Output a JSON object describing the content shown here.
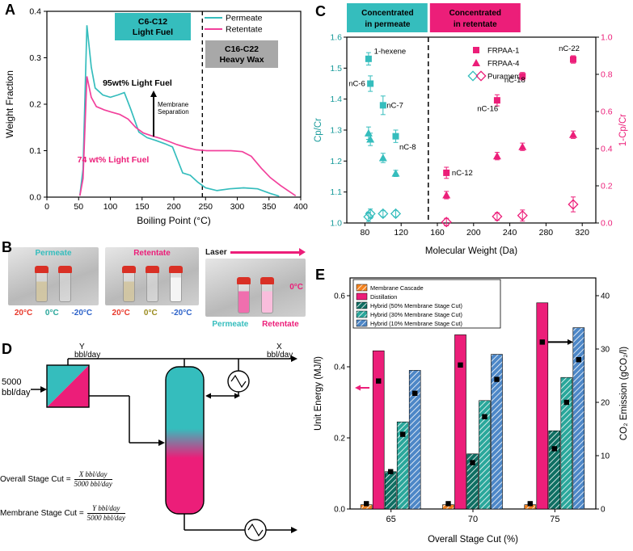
{
  "colors": {
    "teal": "#35BDBD",
    "teal_text": "#189B9B",
    "magenta": "#EC1E79",
    "gray_box": "#A8A8A8",
    "orange": "#F5831F",
    "dark_teal": "#0F6F63",
    "mid_teal": "#2AA79B",
    "blue": "#4D87C7",
    "red": "#E8392B",
    "cold_blue": "#2C62C9"
  },
  "panel_labels": {
    "A": "A",
    "B": "B",
    "C": "C",
    "D": "D",
    "E": "E"
  },
  "chart_data": [
    {
      "id": "A",
      "type": "line",
      "xlabel": "Boiling Point (°C)",
      "ylabel": "Weight Fraction",
      "xlim": [
        0,
        400
      ],
      "ylim": [
        0,
        0.4
      ],
      "xticks": [
        0,
        50,
        100,
        150,
        200,
        250,
        300,
        350,
        400
      ],
      "yticks": [
        "0.0",
        "0.1",
        "0.2",
        "0.3",
        "0.4"
      ],
      "legend": [
        "Permeate",
        "Retentate"
      ],
      "dashed_x": 245,
      "series": [
        {
          "name": "Permeate",
          "color": "#35BDBD",
          "points": [
            [
              52,
              0.004
            ],
            [
              57,
              0.06
            ],
            [
              63,
              0.37
            ],
            [
              70,
              0.28
            ],
            [
              76,
              0.235
            ],
            [
              88,
              0.22
            ],
            [
              100,
              0.215
            ],
            [
              112,
              0.22
            ],
            [
              122,
              0.225
            ],
            [
              132,
              0.19
            ],
            [
              145,
              0.14
            ],
            [
              158,
              0.128
            ],
            [
              172,
              0.122
            ],
            [
              186,
              0.115
            ],
            [
              198,
              0.108
            ],
            [
              206,
              0.08
            ],
            [
              214,
              0.052
            ],
            [
              226,
              0.047
            ],
            [
              238,
              0.032
            ],
            [
              250,
              0.02
            ],
            [
              268,
              0.014
            ],
            [
              288,
              0.018
            ],
            [
              310,
              0.02
            ],
            [
              332,
              0.018
            ],
            [
              352,
              0.008
            ],
            [
              366,
              0.002
            ]
          ]
        },
        {
          "name": "Retentate",
          "color": "#F2419C",
          "points": [
            [
              52,
              0.003
            ],
            [
              57,
              0.04
            ],
            [
              63,
              0.26
            ],
            [
              70,
              0.215
            ],
            [
              78,
              0.195
            ],
            [
              90,
              0.188
            ],
            [
              102,
              0.183
            ],
            [
              115,
              0.178
            ],
            [
              128,
              0.168
            ],
            [
              140,
              0.15
            ],
            [
              152,
              0.138
            ],
            [
              165,
              0.132
            ],
            [
              178,
              0.127
            ],
            [
              192,
              0.12
            ],
            [
              205,
              0.113
            ],
            [
              220,
              0.107
            ],
            [
              235,
              0.102
            ],
            [
              252,
              0.1
            ],
            [
              270,
              0.1
            ],
            [
              290,
              0.1
            ],
            [
              308,
              0.098
            ],
            [
              322,
              0.088
            ],
            [
              338,
              0.062
            ],
            [
              352,
              0.042
            ],
            [
              368,
              0.025
            ],
            [
              382,
              0.012
            ],
            [
              392,
              0.003
            ]
          ]
        }
      ],
      "annotations": {
        "light_fuel_box": [
          "C6-C12",
          "Light Fuel"
        ],
        "heavy_wax_box": [
          "C16-C22",
          "Heavy Wax"
        ],
        "pct95": "95wt% Light Fuel",
        "pct74": "74 wt% Light Fuel",
        "membrane": [
          "Membrane",
          "Separation"
        ]
      }
    },
    {
      "id": "C",
      "type": "scatter",
      "xlabel": "Molecular Weight (Da)",
      "ylabel_left": "Cp/Cr",
      "ylabel_right": "1-Cp/Cr",
      "xlim": [
        60,
        335
      ],
      "xticks": [
        80,
        120,
        160,
        200,
        240,
        280,
        320
      ],
      "ylim_left": [
        1.0,
        1.6
      ],
      "yticks_left": [
        "1.0",
        "1.1",
        "1.2",
        "1.3",
        "1.4",
        "1.5",
        "1.6"
      ],
      "ylim_right": [
        0.0,
        1.0
      ],
      "yticks_right": [
        "0.0",
        "0.2",
        "0.4",
        "0.6",
        "0.8",
        "1.0"
      ],
      "dashed_x": 150,
      "headers": [
        {
          "lines": [
            "Concentrated",
            "in permeate"
          ],
          "bg": "#35BDBD"
        },
        {
          "lines": [
            "Concentrated",
            "in retentate"
          ],
          "bg": "#EC1E79"
        }
      ],
      "legend": [
        {
          "label": "FRPAA-1",
          "marker": "square",
          "colors": [
            "#EC1E79"
          ]
        },
        {
          "label": "FRPAA-4",
          "marker": "triangle",
          "colors": [
            "#EC1E79"
          ]
        },
        {
          "label": "Puramem",
          "marker": "diamond-open",
          "colors": [
            "#35BDBD",
            "#EC1E79"
          ]
        }
      ],
      "series_left": [
        {
          "name": "FRPAA-1",
          "marker": "square",
          "color": "#35BDBD",
          "points": [
            [
              84,
              1.53,
              0.02
            ],
            [
              86,
              1.45,
              0.025
            ],
            [
              100,
              1.38,
              0.03
            ],
            [
              114,
              1.28,
              0.02
            ]
          ]
        },
        {
          "name": "FRPAA-4",
          "marker": "triangle",
          "color": "#35BDBD",
          "points": [
            [
              84,
              1.29,
              0.02
            ],
            [
              86,
              1.27,
              0.02
            ],
            [
              100,
              1.21,
              0.015
            ],
            [
              114,
              1.16,
              0.01
            ]
          ]
        },
        {
          "name": "Puramem",
          "marker": "diamond-open",
          "color": "#35BDBD",
          "points": [
            [
              84,
              1.02,
              0.015
            ],
            [
              86,
              1.03,
              0.015
            ],
            [
              100,
              1.03,
              0.01
            ],
            [
              114,
              1.03,
              0.01
            ]
          ]
        }
      ],
      "series_right": [
        {
          "name": "FRPAA-1",
          "marker": "square",
          "color": "#EC1E79",
          "points": [
            [
              170,
              0.27,
              0.03
            ],
            [
              226,
              0.66,
              0.03
            ],
            [
              254,
              0.79,
              0.02
            ],
            [
              310,
              0.88,
              0.02
            ]
          ]
        },
        {
          "name": "FRPAA-4",
          "marker": "triangle",
          "color": "#EC1E79",
          "points": [
            [
              170,
              0.15,
              0.02
            ],
            [
              226,
              0.36,
              0.02
            ],
            [
              254,
              0.41,
              0.02
            ],
            [
              310,
              0.475,
              0.02
            ]
          ]
        },
        {
          "name": "Puramem",
          "marker": "diamond-open",
          "color": "#EC1E79",
          "points": [
            [
              170,
              0.005,
              0.02
            ],
            [
              226,
              0.035,
              0.02
            ],
            [
              254,
              0.04,
              0.03
            ],
            [
              310,
              0.1,
              0.04
            ]
          ]
        }
      ],
      "point_labels": [
        {
          "text": "1-hexene",
          "x": 90,
          "y": 1.555,
          "axis": "left"
        },
        {
          "text": "nC-6",
          "x": 62,
          "y": 1.45,
          "axis": "left"
        },
        {
          "text": "nC-7",
          "x": 104,
          "y": 1.38,
          "axis": "left"
        },
        {
          "text": "nC-8",
          "x": 118,
          "y": 1.245,
          "axis": "left"
        },
        {
          "text": "nC-12",
          "x": 176,
          "y": 0.27,
          "axis": "right"
        },
        {
          "text": "nC-16",
          "x": 204,
          "y": 0.615,
          "axis": "right"
        },
        {
          "text": "nC-18",
          "x": 234,
          "y": 0.77,
          "axis": "right"
        },
        {
          "text": "nC-22",
          "x": 294,
          "y": 0.94,
          "axis": "right"
        }
      ]
    },
    {
      "id": "E",
      "type": "bar",
      "xlabel": "Overall Stage Cut (%)",
      "ylabel_left": "Unit Energy (MJ/l)",
      "ylabel_right": "CO₂ Emission (gCO₂/l)",
      "categories": [
        "65",
        "70",
        "75"
      ],
      "ylim_left": [
        0,
        0.65
      ],
      "yticks_left": [
        [
          "0.0",
          0
        ],
        [
          "0.2",
          0.2
        ],
        [
          "0.4",
          0.4
        ],
        [
          "0.6",
          0.6
        ]
      ],
      "ylim_right": [
        0,
        43.33
      ],
      "yticks_right": [
        [
          "0",
          0
        ],
        [
          "10",
          10
        ],
        [
          "20",
          20
        ],
        [
          "30",
          30
        ],
        [
          "40",
          40
        ]
      ],
      "series": [
        {
          "name": "Membrane Cascade",
          "color": "#F5831F",
          "hatch": true,
          "values": [
            0.012,
            0.012,
            0.012
          ]
        },
        {
          "name": "Distillation",
          "color": "#EC1E79",
          "hatch": false,
          "values": [
            0.445,
            0.49,
            0.58
          ]
        },
        {
          "name": "Hybrid (50% Membrane Stage Cut)",
          "color": "#0F6F63",
          "hatch": true,
          "values": [
            0.105,
            0.155,
            0.22
          ]
        },
        {
          "name": "Hybrid (30% Membrane Stage Cut)",
          "color": "#2AA79B",
          "hatch": true,
          "values": [
            0.245,
            0.305,
            0.37
          ]
        },
        {
          "name": "Hybrid (10% Membrane Stage Cut)",
          "color": "#4D87C7",
          "hatch": true,
          "values": [
            0.39,
            0.435,
            0.51
          ]
        }
      ],
      "co2_markers": {
        "name": "CO2 Emission",
        "color": "#000000",
        "values": [
          [
            1,
            24,
            7,
            14,
            21.7
          ],
          [
            1,
            27,
            8.7,
            17.3,
            24.3
          ],
          [
            1,
            31.3,
            11.3,
            20,
            28
          ]
        ]
      }
    }
  ],
  "panelB": {
    "photos": [
      {
        "title": "Permeate",
        "title_color": "#35BDBD",
        "vials": [
          "liquid",
          "clear"
        ],
        "temps": [
          {
            "t": "20°C",
            "c": "#E8392B"
          },
          {
            "t": "0°C",
            "c": "#2AA79B"
          },
          {
            "t": "-20°C",
            "c": "#2C62C9"
          }
        ]
      },
      {
        "title": "Retentate",
        "title_color": "#EC1E79",
        "vials": [
          "liquid",
          "clear",
          "frozen"
        ],
        "temps": [
          {
            "t": "20°C",
            "c": "#E8392B"
          },
          {
            "t": "0°C",
            "c": "#9A8B1E"
          },
          {
            "t": "-20°C",
            "c": "#2C62C9"
          }
        ]
      },
      {
        "title": "Laser",
        "title_color": "#1A1A1A",
        "arrow_color": "#EC1E79",
        "vials": [
          "pink",
          "pinklight"
        ],
        "side_label": {
          "t": "0°C",
          "c": "#EC1E79"
        },
        "temps": [
          {
            "t": "Permeate",
            "c": "#35BDBD"
          },
          {
            "t": "Retentate",
            "c": "#EC1E79"
          }
        ]
      }
    ]
  },
  "panelD": {
    "feed_label": [
      "5000",
      "bbl/day"
    ],
    "permeate_label": [
      "Y",
      "bbl/day"
    ],
    "product_label": [
      "X",
      "bbl/day"
    ],
    "eq1_label": "Overall Stage Cut =",
    "eq1_num": "X bbl/day",
    "eq1_den": "5000 bbl/day",
    "eq2_label": "Membrane Stage Cut =",
    "eq2_num": "Y bbl/day",
    "eq2_den": "5000 bbl/day"
  }
}
